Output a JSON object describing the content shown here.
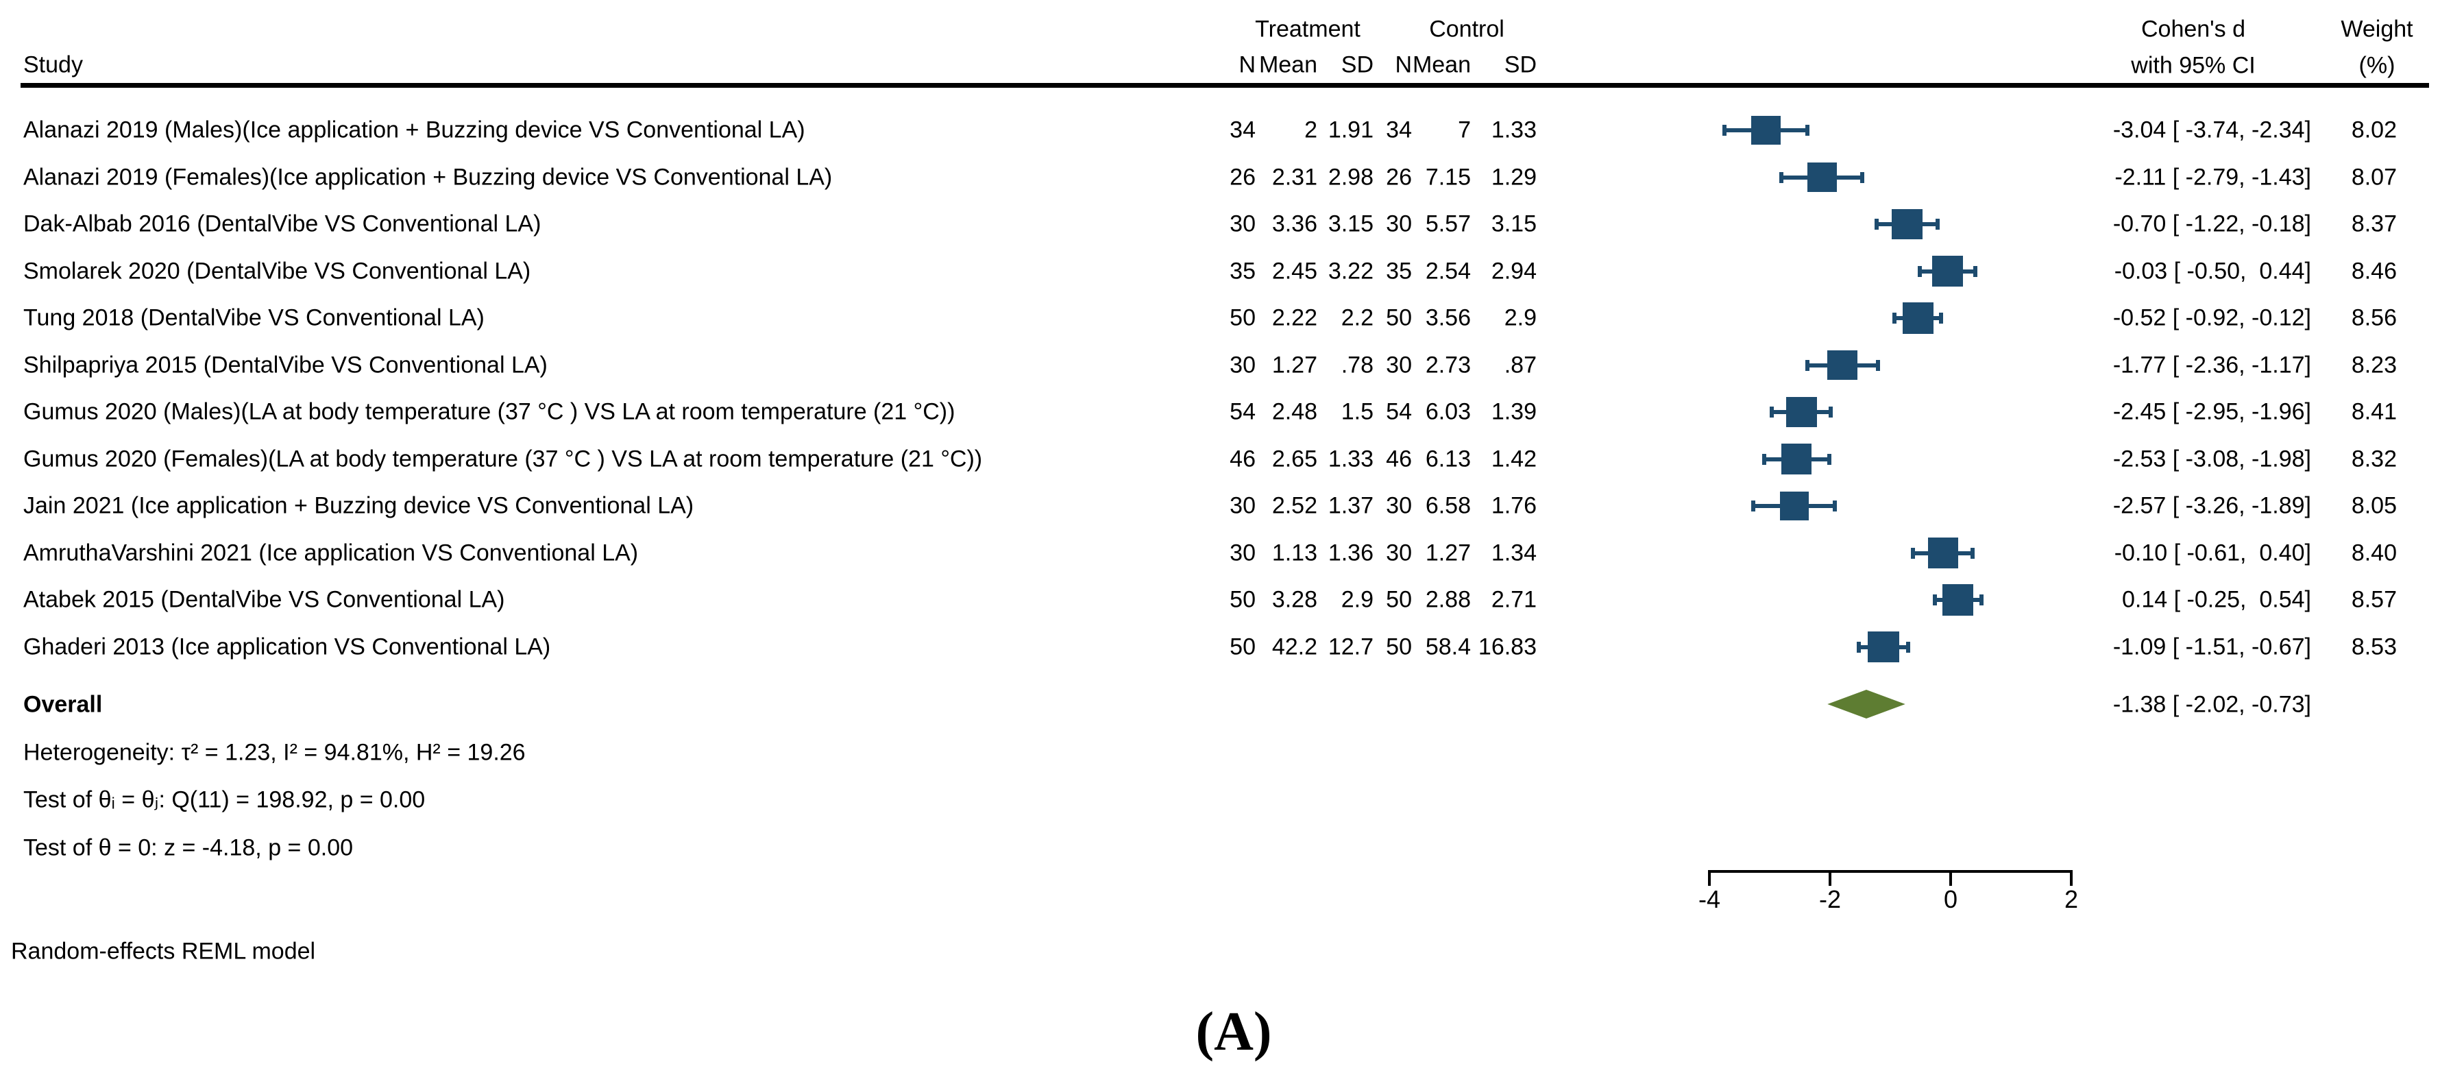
{
  "chart_data": {
    "type": "forest",
    "columns": {
      "study": "Study",
      "group_treatment": "Treatment",
      "group_control": "Control",
      "n1": "N",
      "mean1": "Mean",
      "sd1": "SD",
      "n2": "N",
      "mean2": "Mean",
      "sd2": "SD",
      "effect_line1": "Cohen's d",
      "effect_line2": "with 95% CI",
      "weight_line1": "Weight",
      "weight_line2": "(%)"
    },
    "studies": [
      {
        "label": "Alanazi 2019 (Males)(Ice application + Buzzing device VS Conventional LA)",
        "n1": "34",
        "mean1": "2",
        "sd1": "1.91",
        "n2": "34",
        "mean2": "7",
        "sd2": "1.33",
        "d": -3.04,
        "lo": -3.74,
        "hi": -2.34,
        "es_label": "-3.04 [ -3.74, -2.34]",
        "weight": 8.02,
        "weight_label": "8.02"
      },
      {
        "label": "Alanazi 2019 (Females)(Ice application + Buzzing device VS Conventional LA)",
        "n1": "26",
        "mean1": "2.31",
        "sd1": "2.98",
        "n2": "26",
        "mean2": "7.15",
        "sd2": "1.29",
        "d": -2.11,
        "lo": -2.79,
        "hi": -1.43,
        "es_label": "-2.11 [ -2.79, -1.43]",
        "weight": 8.07,
        "weight_label": "8.07"
      },
      {
        "label": "Dak-Albab 2016 (DentalVibe VS Conventional LA)",
        "n1": "30",
        "mean1": "3.36",
        "sd1": "3.15",
        "n2": "30",
        "mean2": "5.57",
        "sd2": "3.15",
        "d": -0.7,
        "lo": -1.22,
        "hi": -0.18,
        "es_label": "-0.70 [ -1.22, -0.18]",
        "weight": 8.37,
        "weight_label": "8.37"
      },
      {
        "label": "Smolarek 2020 (DentalVibe VS Conventional LA)",
        "n1": "35",
        "mean1": "2.45",
        "sd1": "3.22",
        "n2": "35",
        "mean2": "2.54",
        "sd2": "2.94",
        "d": -0.03,
        "lo": -0.5,
        "hi": 0.44,
        "es_label": "-0.03 [ -0.50,  0.44]",
        "weight": 8.46,
        "weight_label": "8.46"
      },
      {
        "label": "Tung 2018 (DentalVibe VS Conventional LA)",
        "n1": "50",
        "mean1": "2.22",
        "sd1": "2.2",
        "n2": "50",
        "mean2": "3.56",
        "sd2": "2.9",
        "d": -0.52,
        "lo": -0.92,
        "hi": -0.12,
        "es_label": "-0.52 [ -0.92, -0.12]",
        "weight": 8.56,
        "weight_label": "8.56"
      },
      {
        "label": "Shilpapriya 2015 (DentalVibe VS Conventional LA)",
        "n1": "30",
        "mean1": "1.27",
        "sd1": ".78",
        "n2": "30",
        "mean2": "2.73",
        "sd2": ".87",
        "d": -1.77,
        "lo": -2.36,
        "hi": -1.17,
        "es_label": "-1.77 [ -2.36, -1.17]",
        "weight": 8.23,
        "weight_label": "8.23"
      },
      {
        "label": "Gumus 2020 (Males)(LA at body temperature (37 °C ) VS LA at room temperature (21 °C))",
        "n1": "54",
        "mean1": "2.48",
        "sd1": "1.5",
        "n2": "54",
        "mean2": "6.03",
        "sd2": "1.39",
        "d": -2.45,
        "lo": -2.95,
        "hi": -1.96,
        "es_label": "-2.45 [ -2.95, -1.96]",
        "weight": 8.41,
        "weight_label": "8.41"
      },
      {
        "label": "Gumus 2020 (Females)(LA at body temperature (37 °C ) VS LA at room temperature (21 °C))",
        "n1": "46",
        "mean1": "2.65",
        "sd1": "1.33",
        "n2": "46",
        "mean2": "6.13",
        "sd2": "1.42",
        "d": -2.53,
        "lo": -3.08,
        "hi": -1.98,
        "es_label": "-2.53 [ -3.08, -1.98]",
        "weight": 8.32,
        "weight_label": "8.32"
      },
      {
        "label": "Jain 2021 (Ice application + Buzzing device VS Conventional LA)",
        "n1": "30",
        "mean1": "2.52",
        "sd1": "1.37",
        "n2": "30",
        "mean2": "6.58",
        "sd2": "1.76",
        "d": -2.57,
        "lo": -3.26,
        "hi": -1.89,
        "es_label": "-2.57 [ -3.26, -1.89]",
        "weight": 8.05,
        "weight_label": "8.05"
      },
      {
        "label": "AmruthaVarshini 2021 (Ice application VS Conventional LA)",
        "n1": "30",
        "mean1": "1.13",
        "sd1": "1.36",
        "n2": "30",
        "mean2": "1.27",
        "sd2": "1.34",
        "d": -0.1,
        "lo": -0.61,
        "hi": 0.4,
        "es_label": "-0.10 [ -0.61,  0.40]",
        "weight": 8.4,
        "weight_label": "8.40"
      },
      {
        "label": "Atabek 2015 (DentalVibe VS Conventional LA)",
        "n1": "50",
        "mean1": "3.28",
        "sd1": "2.9",
        "n2": "50",
        "mean2": "2.88",
        "sd2": "2.71",
        "d": 0.14,
        "lo": -0.25,
        "hi": 0.54,
        "es_label": " 0.14 [ -0.25,  0.54]",
        "weight": 8.57,
        "weight_label": "8.57"
      },
      {
        "label": "Ghaderi 2013 (Ice application VS Conventional LA)",
        "n1": "50",
        "mean1": "42.2",
        "sd1": "12.7",
        "n2": "50",
        "mean2": "58.4",
        "sd2": "16.83",
        "d": -1.09,
        "lo": -1.51,
        "hi": -0.67,
        "es_label": "-1.09 [ -1.51, -0.67]",
        "weight": 8.53,
        "weight_label": "8.53"
      }
    ],
    "overall": {
      "label": "Overall",
      "d": -1.38,
      "lo": -2.02,
      "hi": -0.73,
      "es_label": "-1.38 [ -2.02, -0.73]"
    },
    "heterogeneity_text": "Heterogeneity: τ² = 1.23, I² = 94.81%, H² = 19.26",
    "test_q_text": "Test of θᵢ = θⱼ: Q(11) = 198.92, p = 0.00",
    "test_z_text": "Test of θ = 0: z = -4.18, p = 0.00",
    "axis": {
      "ticks": [
        -4,
        -2,
        0,
        2
      ],
      "tick_labels": [
        "-4",
        "-2",
        "0",
        "2"
      ]
    },
    "footnote": "Random-effects REML model",
    "panel_label": "(A)",
    "marker_color": "#1d4b6e",
    "diamond_color": "#5e7d32"
  }
}
